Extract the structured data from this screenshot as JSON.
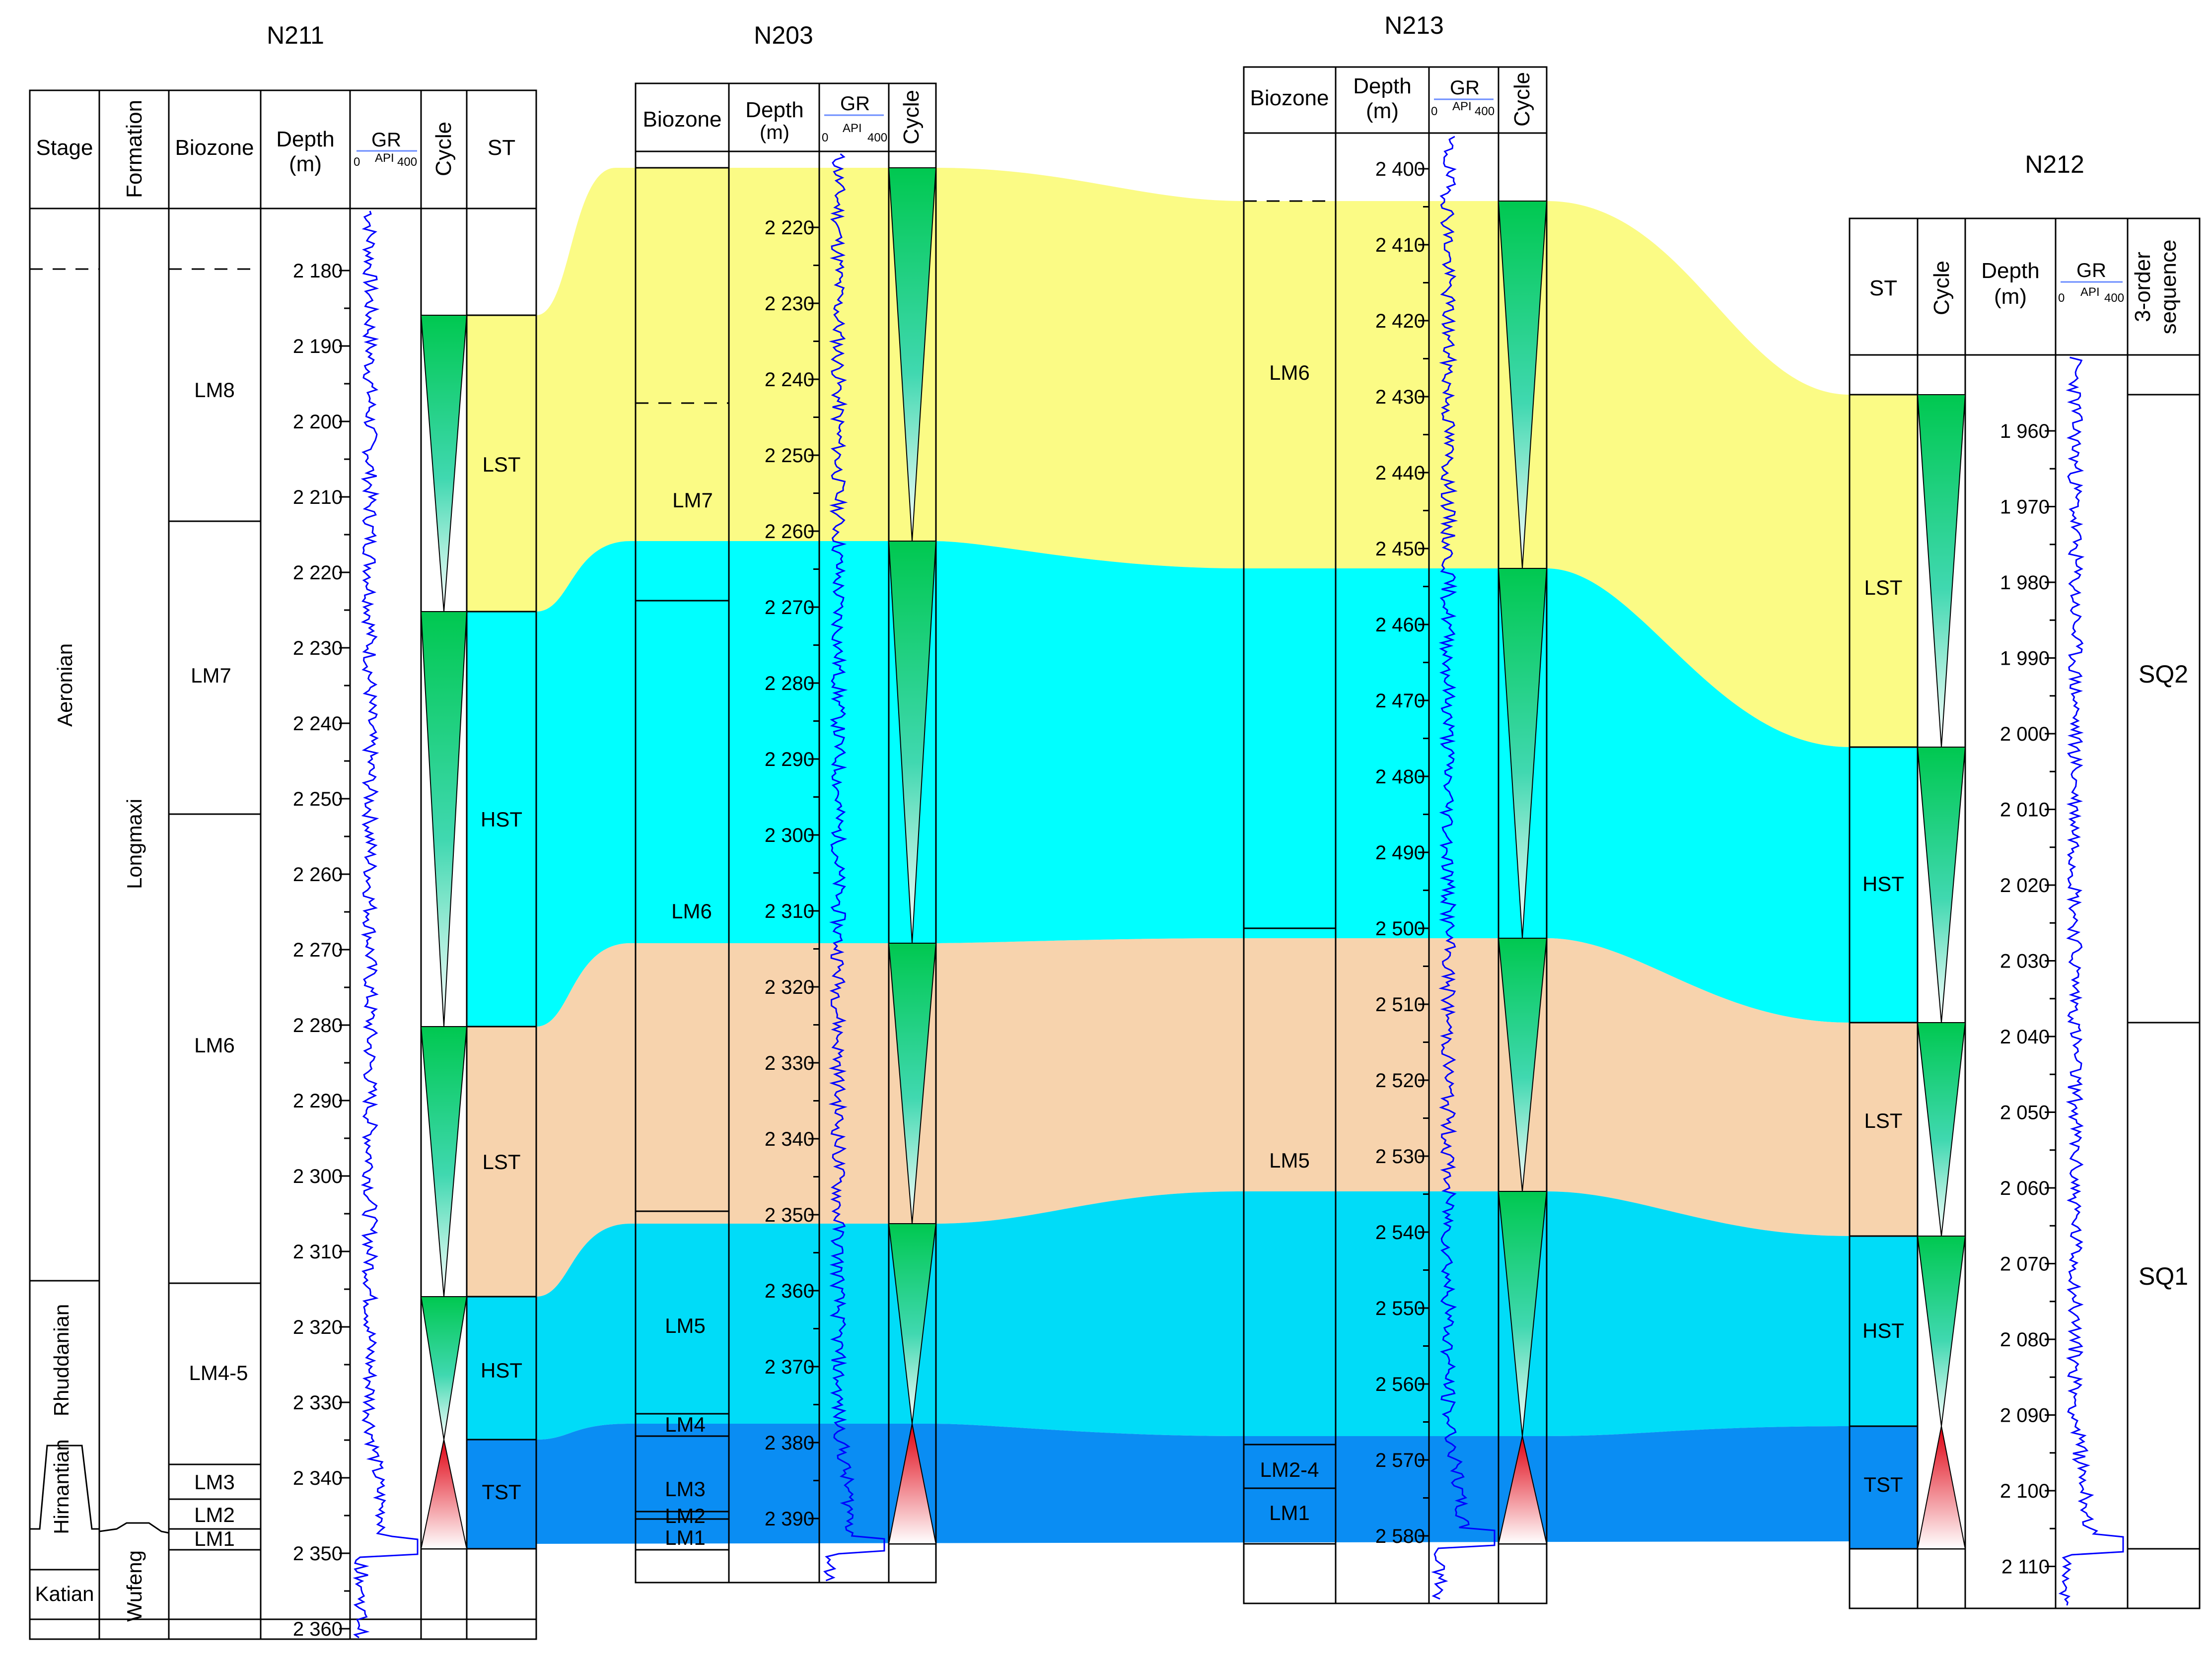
{
  "colors": {
    "yellow_band": "#fbfb85",
    "cyan_band": "#00ffff",
    "tan_band": "#f7d3ad",
    "sky_band": "#00dcf8",
    "blue_band": "#0a8df3",
    "gr_curve": "#0000ff",
    "cycle_green": "#00c850",
    "cycle_red": "#e00010"
  },
  "gr_scale": {
    "label": "GR",
    "min": "0",
    "unit": "API",
    "max": "400"
  },
  "headers": {
    "stage": "Stage",
    "formation": "Formation",
    "biozone": "Biozone",
    "depth": "Depth",
    "depth_unit": "(m)",
    "cycle": "Cycle",
    "st": "ST",
    "order3_a": "3-order",
    "order3_b": "sequence"
  },
  "wells": {
    "n211": {
      "name": "N211",
      "depth_ticks": [
        "2 180",
        "2 190",
        "2 200",
        "2 210",
        "2 220",
        "2 230",
        "2 240",
        "2 250",
        "2 260",
        "2 270",
        "2 280",
        "2 290",
        "2 300",
        "2 310",
        "2 320",
        "2 330",
        "2 340",
        "2 350",
        "2 360"
      ],
      "stages": [
        "Aeronian",
        "Rhuddanian",
        "Hirnantian",
        "Katian"
      ],
      "formations": [
        "Longmaxi",
        "Wufeng"
      ],
      "biozones": [
        "LM8",
        "LM7",
        "LM6",
        "LM4-5",
        "LM3",
        "LM2",
        "LM1"
      ],
      "system_tracts": [
        "LST",
        "HST",
        "LST",
        "HST",
        "TST"
      ]
    },
    "n203": {
      "name": "N203",
      "depth_ticks": [
        "2 220",
        "2 230",
        "2 240",
        "2 250",
        "2 260",
        "2 270",
        "2 280",
        "2 290",
        "2 300",
        "2 310",
        "2 320",
        "2 330",
        "2 340",
        "2 350",
        "2 360",
        "2 370",
        "2 380",
        "2 390"
      ],
      "biozones": [
        "LM7",
        "LM6",
        "LM5",
        "LM4",
        "LM3",
        "LM2",
        "LM1"
      ]
    },
    "n213": {
      "name": "N213",
      "depth_ticks": [
        "2 400",
        "2 410",
        "2 420",
        "2 430",
        "2 440",
        "2 450",
        "2 460",
        "2 470",
        "2 480",
        "2 490",
        "2 500",
        "2 510",
        "2 520",
        "2 530",
        "2 540",
        "2 550",
        "2 560",
        "2 570",
        "2 580"
      ],
      "biozones": [
        "LM6",
        "LM5",
        "LM2-4",
        "LM1"
      ]
    },
    "n212": {
      "name": "N212",
      "depth_ticks": [
        "1 960",
        "1 970",
        "1 980",
        "1 990",
        "2 000",
        "2 010",
        "2 020",
        "2 030",
        "2 040",
        "2 050",
        "2 060",
        "2 070",
        "2 080",
        "2 090",
        "2 100",
        "2 110"
      ],
      "system_tracts": [
        "LST",
        "HST",
        "LST",
        "HST",
        "TST"
      ],
      "sequences": [
        "SQ2",
        "SQ1"
      ]
    }
  }
}
